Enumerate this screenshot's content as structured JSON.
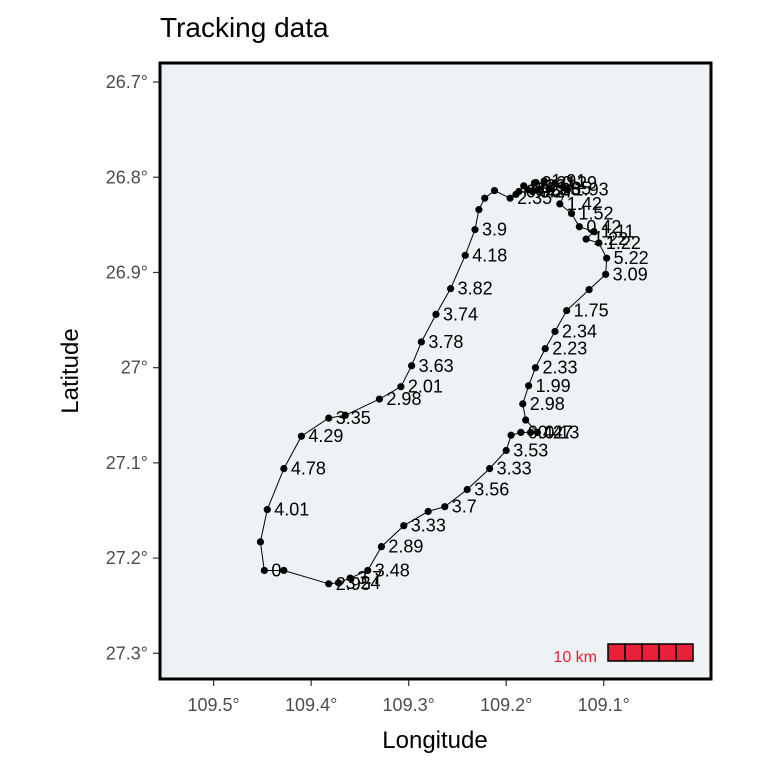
{
  "chart_data": {
    "type": "scatter",
    "title": "Tracking data",
    "xlabel": "Longitude",
    "ylabel": "Latitude",
    "xlim": [
      109.555,
      108.99
    ],
    "ylim": [
      26.68,
      27.327
    ],
    "x_ticks": [
      109.5,
      109.4,
      109.3,
      109.2,
      109.1
    ],
    "x_tick_labels": [
      "109.5°",
      "109.4°",
      "109.3°",
      "109.2°",
      "109.1°"
    ],
    "y_ticks": [
      26.7,
      26.8,
      26.9,
      27.0,
      27.1,
      27.2,
      27.3
    ],
    "y_tick_labels": [
      "26.7°",
      "26.8°",
      "26.9°",
      "27°",
      "27.1°",
      "27.2°",
      "27.3°"
    ],
    "scale_bar": {
      "label": "10 km",
      "color": "#e8203a"
    },
    "colors": {
      "panel": "#edf2f4",
      "border": "#000000",
      "track": "#000000"
    },
    "track": [
      {
        "lon": 109.448,
        "lat": 27.213,
        "label": "0"
      },
      {
        "lon": 109.428,
        "lat": 27.213,
        "label": ""
      },
      {
        "lon": 109.382,
        "lat": 27.227,
        "label": "2.95"
      },
      {
        "lon": 109.372,
        "lat": 27.226,
        "label": "3.24"
      },
      {
        "lon": 109.36,
        "lat": 27.221,
        "label": "3.7"
      },
      {
        "lon": 109.342,
        "lat": 27.213,
        "label": "3.48"
      },
      {
        "lon": 109.328,
        "lat": 27.188,
        "label": "2.89"
      },
      {
        "lon": 109.305,
        "lat": 27.166,
        "label": "3.33"
      },
      {
        "lon": 109.28,
        "lat": 27.151,
        "label": ""
      },
      {
        "lon": 109.263,
        "lat": 27.146,
        "label": "3.7"
      },
      {
        "lon": 109.24,
        "lat": 27.128,
        "label": "3.56"
      },
      {
        "lon": 109.217,
        "lat": 27.106,
        "label": "3.33"
      },
      {
        "lon": 109.2,
        "lat": 27.087,
        "label": "3.53"
      },
      {
        "lon": 109.195,
        "lat": 27.071,
        "label": ""
      },
      {
        "lon": 109.185,
        "lat": 27.068,
        "label": "0.42"
      },
      {
        "lon": 109.175,
        "lat": 27.068,
        "label": "0.47"
      },
      {
        "lon": 109.168,
        "lat": 27.068,
        "label": "0.13"
      },
      {
        "lon": 109.18,
        "lat": 27.055,
        "label": ""
      },
      {
        "lon": 109.183,
        "lat": 27.038,
        "label": "2.98"
      },
      {
        "lon": 109.177,
        "lat": 27.019,
        "label": "1.99"
      },
      {
        "lon": 109.17,
        "lat": 27.0,
        "label": "2.33"
      },
      {
        "lon": 109.16,
        "lat": 26.98,
        "label": "2.23"
      },
      {
        "lon": 109.15,
        "lat": 26.962,
        "label": "2.34"
      },
      {
        "lon": 109.138,
        "lat": 26.94,
        "label": "1.75"
      },
      {
        "lon": 109.115,
        "lat": 26.918,
        "label": ""
      },
      {
        "lon": 109.098,
        "lat": 26.902,
        "label": "3.09"
      },
      {
        "lon": 109.097,
        "lat": 26.885,
        "label": "5.22"
      },
      {
        "lon": 109.105,
        "lat": 26.869,
        "label": "1.22"
      },
      {
        "lon": 109.118,
        "lat": 26.865,
        "label": "1.22"
      },
      {
        "lon": 109.11,
        "lat": 26.857,
        "label": "1.11"
      },
      {
        "lon": 109.125,
        "lat": 26.852,
        "label": "0.42"
      },
      {
        "lon": 109.133,
        "lat": 26.838,
        "label": "1.52"
      },
      {
        "lon": 109.145,
        "lat": 26.828,
        "label": "1.42"
      },
      {
        "lon": 109.138,
        "lat": 26.813,
        "label": "1.93"
      },
      {
        "lon": 109.15,
        "lat": 26.806,
        "label": "0.29"
      },
      {
        "lon": 109.156,
        "lat": 26.812,
        "label": "1.85"
      },
      {
        "lon": 109.161,
        "lat": 26.804,
        "label": "1.91"
      },
      {
        "lon": 109.167,
        "lat": 26.813,
        "label": "0.38"
      },
      {
        "lon": 109.171,
        "lat": 26.806,
        "label": "0.31"
      },
      {
        "lon": 109.173,
        "lat": 26.815,
        "label": "0.27"
      },
      {
        "lon": 109.178,
        "lat": 26.813,
        "label": "0.21"
      },
      {
        "lon": 109.182,
        "lat": 26.809,
        "label": "0.29"
      },
      {
        "lon": 109.187,
        "lat": 26.815,
        "label": "0.96"
      },
      {
        "lon": 109.19,
        "lat": 26.818,
        "label": ""
      },
      {
        "lon": 109.196,
        "lat": 26.822,
        "label": "2.35"
      },
      {
        "lon": 109.212,
        "lat": 26.814,
        "label": ""
      },
      {
        "lon": 109.222,
        "lat": 26.822,
        "label": ""
      },
      {
        "lon": 109.228,
        "lat": 26.834,
        "label": ""
      },
      {
        "lon": 109.232,
        "lat": 26.855,
        "label": "3.9"
      },
      {
        "lon": 109.242,
        "lat": 26.882,
        "label": "4.18"
      },
      {
        "lon": 109.257,
        "lat": 26.917,
        "label": "3.82"
      },
      {
        "lon": 109.272,
        "lat": 26.944,
        "label": "3.74"
      },
      {
        "lon": 109.287,
        "lat": 26.973,
        "label": "3.78"
      },
      {
        "lon": 109.297,
        "lat": 26.998,
        "label": "3.63"
      },
      {
        "lon": 109.308,
        "lat": 27.02,
        "label": "2.01"
      },
      {
        "lon": 109.33,
        "lat": 27.033,
        "label": "2.98"
      },
      {
        "lon": 109.365,
        "lat": 27.05,
        "label": ""
      },
      {
        "lon": 109.382,
        "lat": 27.053,
        "label": "3.35"
      },
      {
        "lon": 109.41,
        "lat": 27.072,
        "label": "4.29"
      },
      {
        "lon": 109.428,
        "lat": 27.106,
        "label": "4.78"
      },
      {
        "lon": 109.445,
        "lat": 27.149,
        "label": "4.01"
      },
      {
        "lon": 109.452,
        "lat": 27.183,
        "label": ""
      }
    ]
  }
}
